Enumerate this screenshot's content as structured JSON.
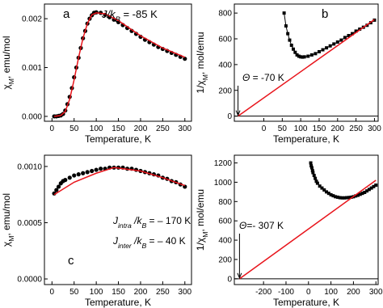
{
  "chart_data": [
    {
      "type": "scatter",
      "xlabel": "Temperature, K",
      "ylabel": [
        {
          "text": "χ",
          "style": ""
        },
        {
          "text": "M",
          "style": "sub"
        },
        {
          "text": ", emu/mol",
          "style": ""
        }
      ],
      "xlim": [
        -17,
        315
      ],
      "ylim": [
        -0.0001,
        0.0023
      ],
      "xticks": [
        0,
        50,
        100,
        150,
        200,
        250,
        300
      ],
      "yticks": [
        {
          "value": 0,
          "label": "0.000"
        },
        0.001,
        0.002
      ],
      "annotations": [
        [
          {
            "text": "a",
            "style": ""
          }
        ],
        [
          {
            "text": "J/k",
            "style": "i"
          },
          {
            "text": "B",
            "style": "isub"
          },
          {
            "text": " = -85 K",
            "style": ""
          }
        ]
      ],
      "series": [
        {
          "marker": "circle",
          "line": false,
          "color": "#000000",
          "x": [
            5,
            10,
            15,
            20,
            25,
            30,
            35,
            40,
            45,
            50,
            55,
            60,
            65,
            70,
            75,
            80,
            85,
            90,
            95,
            100,
            110,
            120,
            130,
            140,
            150,
            160,
            170,
            180,
            190,
            200,
            210,
            220,
            230,
            240,
            250,
            260,
            270,
            280,
            290,
            300
          ],
          "values": [
            0,
            0,
            1e-05,
            2e-05,
            5e-05,
            0.00012,
            0.00025,
            0.0004,
            0.00058,
            0.0008,
            0.001,
            0.0012,
            0.0014,
            0.0016,
            0.00175,
            0.0019,
            0.002,
            0.00207,
            0.00212,
            0.00213,
            0.00212,
            0.00208,
            0.00203,
            0.00198,
            0.00193,
            0.00187,
            0.00181,
            0.00175,
            0.00169,
            0.00163,
            0.00157,
            0.00152,
            0.00147,
            0.00142,
            0.00138,
            0.00134,
            0.0013,
            0.00126,
            0.00122,
            0.00118
          ]
        },
        {
          "marker": "none",
          "line": true,
          "color": "#e8141b",
          "x": [
            5,
            20,
            30,
            40,
            50,
            60,
            70,
            80,
            90,
            100,
            120,
            150,
            200,
            250,
            300
          ],
          "values": [
            0,
            2e-05,
            0.0001,
            0.00035,
            0.00075,
            0.0012,
            0.0016,
            0.0019,
            0.00208,
            0.00212,
            0.0021,
            0.00196,
            0.00165,
            0.0014,
            0.00121
          ]
        }
      ]
    },
    {
      "type": "scatter",
      "xlabel": "Temperature, K",
      "ylabel": [
        {
          "text": "1/χ",
          "style": ""
        },
        {
          "text": "M",
          "style": "sub"
        },
        {
          "text": ", mol/emu",
          "style": ""
        }
      ],
      "xlim": [
        -80,
        310
      ],
      "ylim": [
        -40,
        870
      ],
      "xticks": [
        0,
        50,
        100,
        150,
        200,
        250,
        300
      ],
      "yticks": [
        0,
        200,
        400,
        600,
        800
      ],
      "zero_line": true,
      "arrow": true,
      "annotations": [
        [
          {
            "text": "b",
            "style": ""
          }
        ],
        [
          {
            "text": "Θ",
            "style": "i"
          },
          {
            "text": " = -70 K",
            "style": ""
          }
        ]
      ],
      "series": [
        {
          "marker": "square",
          "line": true,
          "color": "#000000",
          "x": [
            55,
            60,
            65,
            70,
            75,
            80,
            85,
            90,
            95,
            100,
            105,
            110,
            120,
            130,
            140,
            150,
            160,
            170,
            180,
            190,
            200,
            210,
            220,
            230,
            240,
            250,
            260,
            270,
            280,
            290,
            300
          ],
          "values": [
            800,
            700,
            640,
            590,
            550,
            520,
            495,
            475,
            465,
            460,
            458,
            460,
            465,
            475,
            485,
            500,
            515,
            530,
            545,
            560,
            575,
            590,
            610,
            625,
            640,
            660,
            675,
            690,
            705,
            725,
            745
          ]
        },
        {
          "marker": "none",
          "line": true,
          "color": "#e8141b",
          "x": [
            -70,
            300
          ],
          "values": [
            0,
            750
          ]
        }
      ]
    },
    {
      "type": "scatter",
      "xlabel": "Temperature, K",
      "ylabel": [
        {
          "text": "χ",
          "style": ""
        },
        {
          "text": "M",
          "style": "sub"
        },
        {
          "text": ", emu/mol",
          "style": ""
        }
      ],
      "xlim": [
        -17,
        315
      ],
      "ylim": [
        -5e-05,
        0.0011
      ],
      "xticks": [
        0,
        50,
        100,
        150,
        200,
        250,
        300
      ],
      "yticks": [
        {
          "value": 0,
          "label": "0.0000"
        },
        0.0005,
        {
          "value": 0.001,
          "label": "0.0010"
        }
      ],
      "annotations": [
        [
          {
            "text": "J",
            "style": "i"
          },
          {
            "text": "intra",
            "style": "isub"
          },
          {
            "text": " /k",
            "style": "i"
          },
          {
            "text": "B",
            "style": "isub"
          },
          {
            "text": " = – 170 K",
            "style": ""
          }
        ],
        [
          {
            "text": "J",
            "style": "i"
          },
          {
            "text": "inter",
            "style": "isub"
          },
          {
            "text": " /k",
            "style": "i"
          },
          {
            "text": "B",
            "style": "isub"
          },
          {
            "text": " = – 40 K",
            "style": ""
          }
        ],
        [
          {
            "text": "c",
            "style": ""
          }
        ]
      ],
      "series": [
        {
          "marker": "circle",
          "line": false,
          "color": "#000000",
          "x": [
            5,
            10,
            15,
            20,
            25,
            30,
            40,
            50,
            60,
            70,
            80,
            90,
            100,
            110,
            120,
            130,
            140,
            150,
            160,
            170,
            180,
            190,
            200,
            210,
            220,
            230,
            240,
            250,
            260,
            270,
            280,
            290,
            300
          ],
          "values": [
            0.00076,
            0.00079,
            0.00082,
            0.00085,
            0.00087,
            0.00088,
            0.0009,
            0.00092,
            0.00093,
            0.00094,
            0.00095,
            0.00096,
            0.00097,
            0.00098,
            0.00098,
            0.00099,
            0.00099,
            0.00099,
            0.00099,
            0.00098,
            0.00098,
            0.00097,
            0.00096,
            0.00095,
            0.00094,
            0.00093,
            0.00092,
            0.0009,
            0.00089,
            0.00087,
            0.00086,
            0.00084,
            0.00082
          ]
        },
        {
          "marker": "none",
          "line": true,
          "color": "#e8141b",
          "x": [
            5,
            50,
            100,
            140,
            200,
            250,
            300
          ],
          "values": [
            0.00075,
            0.00086,
            0.00094,
            0.00099,
            0.00096,
            0.0009,
            0.00083
          ]
        }
      ]
    },
    {
      "type": "scatter",
      "xlabel": "Temperature, K",
      "ylabel": [
        {
          "text": "1/χ",
          "style": ""
        },
        {
          "text": "M",
          "style": "sub"
        },
        {
          "text": ", mol/emu",
          "style": ""
        }
      ],
      "xlim": [
        -330,
        310
      ],
      "ylim": [
        -60,
        1280
      ],
      "xticks": [
        -200,
        -100,
        0,
        100,
        200,
        300
      ],
      "yticks": [
        0,
        200,
        400,
        600,
        800,
        1000,
        1200
      ],
      "zero_line": true,
      "arrow": true,
      "annotations": [
        [
          {
            "text": "Θ",
            "style": "i"
          },
          {
            "text": "=- 307 K",
            "style": ""
          }
        ]
      ],
      "series": [
        {
          "marker": "square",
          "line": true,
          "color": "#000000",
          "x": [
            10,
            12,
            15,
            18,
            20,
            25,
            30,
            35,
            40,
            50,
            60,
            70,
            80,
            90,
            100,
            110,
            120,
            130,
            140,
            150,
            160,
            170,
            180,
            190,
            200,
            210,
            220,
            230,
            240,
            250,
            260,
            270,
            280,
            290,
            300
          ],
          "values": [
            1200,
            1170,
            1150,
            1120,
            1100,
            1070,
            1040,
            1010,
            990,
            960,
            940,
            920,
            900,
            885,
            870,
            860,
            850,
            845,
            840,
            838,
            838,
            840,
            842,
            845,
            850,
            858,
            865,
            875,
            885,
            895,
            910,
            925,
            940,
            955,
            970
          ]
        },
        {
          "marker": "none",
          "line": true,
          "color": "#e8141b",
          "x": [
            -307,
            300
          ],
          "values": [
            0,
            1020
          ]
        }
      ]
    }
  ]
}
